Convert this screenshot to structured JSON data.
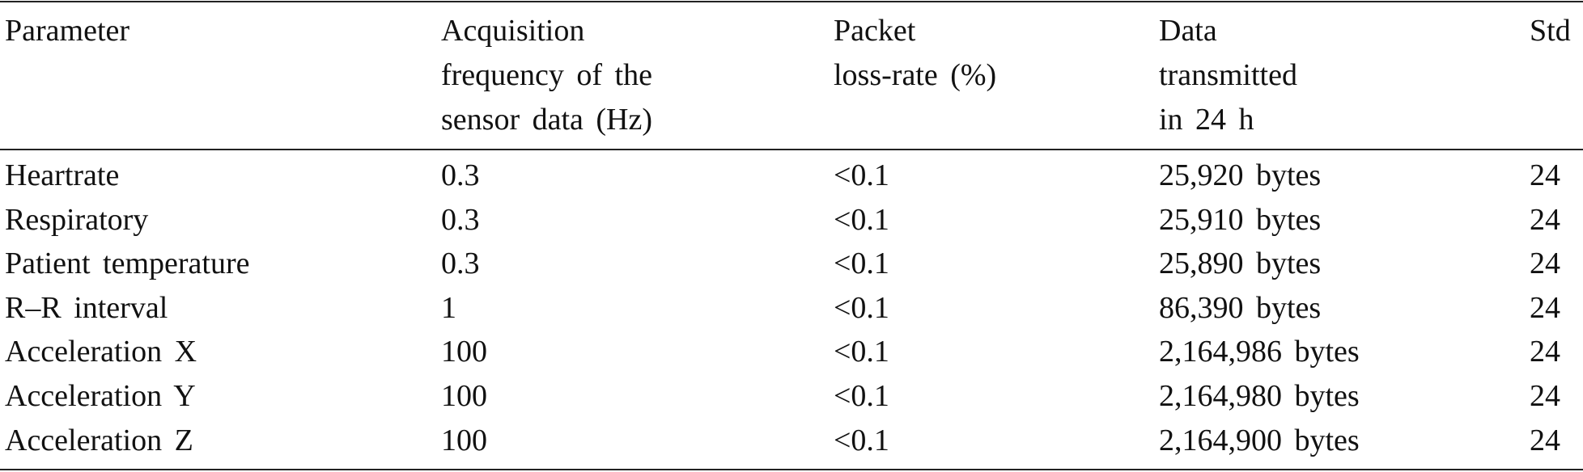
{
  "table": {
    "header": [
      [
        "Parameter"
      ],
      [
        "Acquisition",
        "frequency of the",
        "sensor data (Hz)"
      ],
      [
        "Packet",
        "loss-rate (%)"
      ],
      [
        "Data",
        "transmitted",
        "in 24 h"
      ],
      [
        "Std"
      ]
    ],
    "rows": [
      [
        "Heartrate",
        "0.3",
        "<0.1",
        "25,920 bytes",
        "24"
      ],
      [
        "Respiratory",
        "0.3",
        "<0.1",
        "25,910 bytes",
        "24"
      ],
      [
        "Patient temperature",
        "0.3",
        "<0.1",
        "25,890 bytes",
        "24"
      ],
      [
        "R–R interval",
        "1",
        "<0.1",
        "86,390 bytes",
        "24"
      ],
      [
        "Acceleration X",
        "100",
        "<0.1",
        "2,164,986 bytes",
        "24"
      ],
      [
        "Acceleration Y",
        "100",
        "<0.1",
        "2,164,980 bytes",
        "24"
      ],
      [
        "Acceleration Z",
        "100",
        "<0.1",
        "2,164,900 bytes",
        "24"
      ]
    ]
  }
}
